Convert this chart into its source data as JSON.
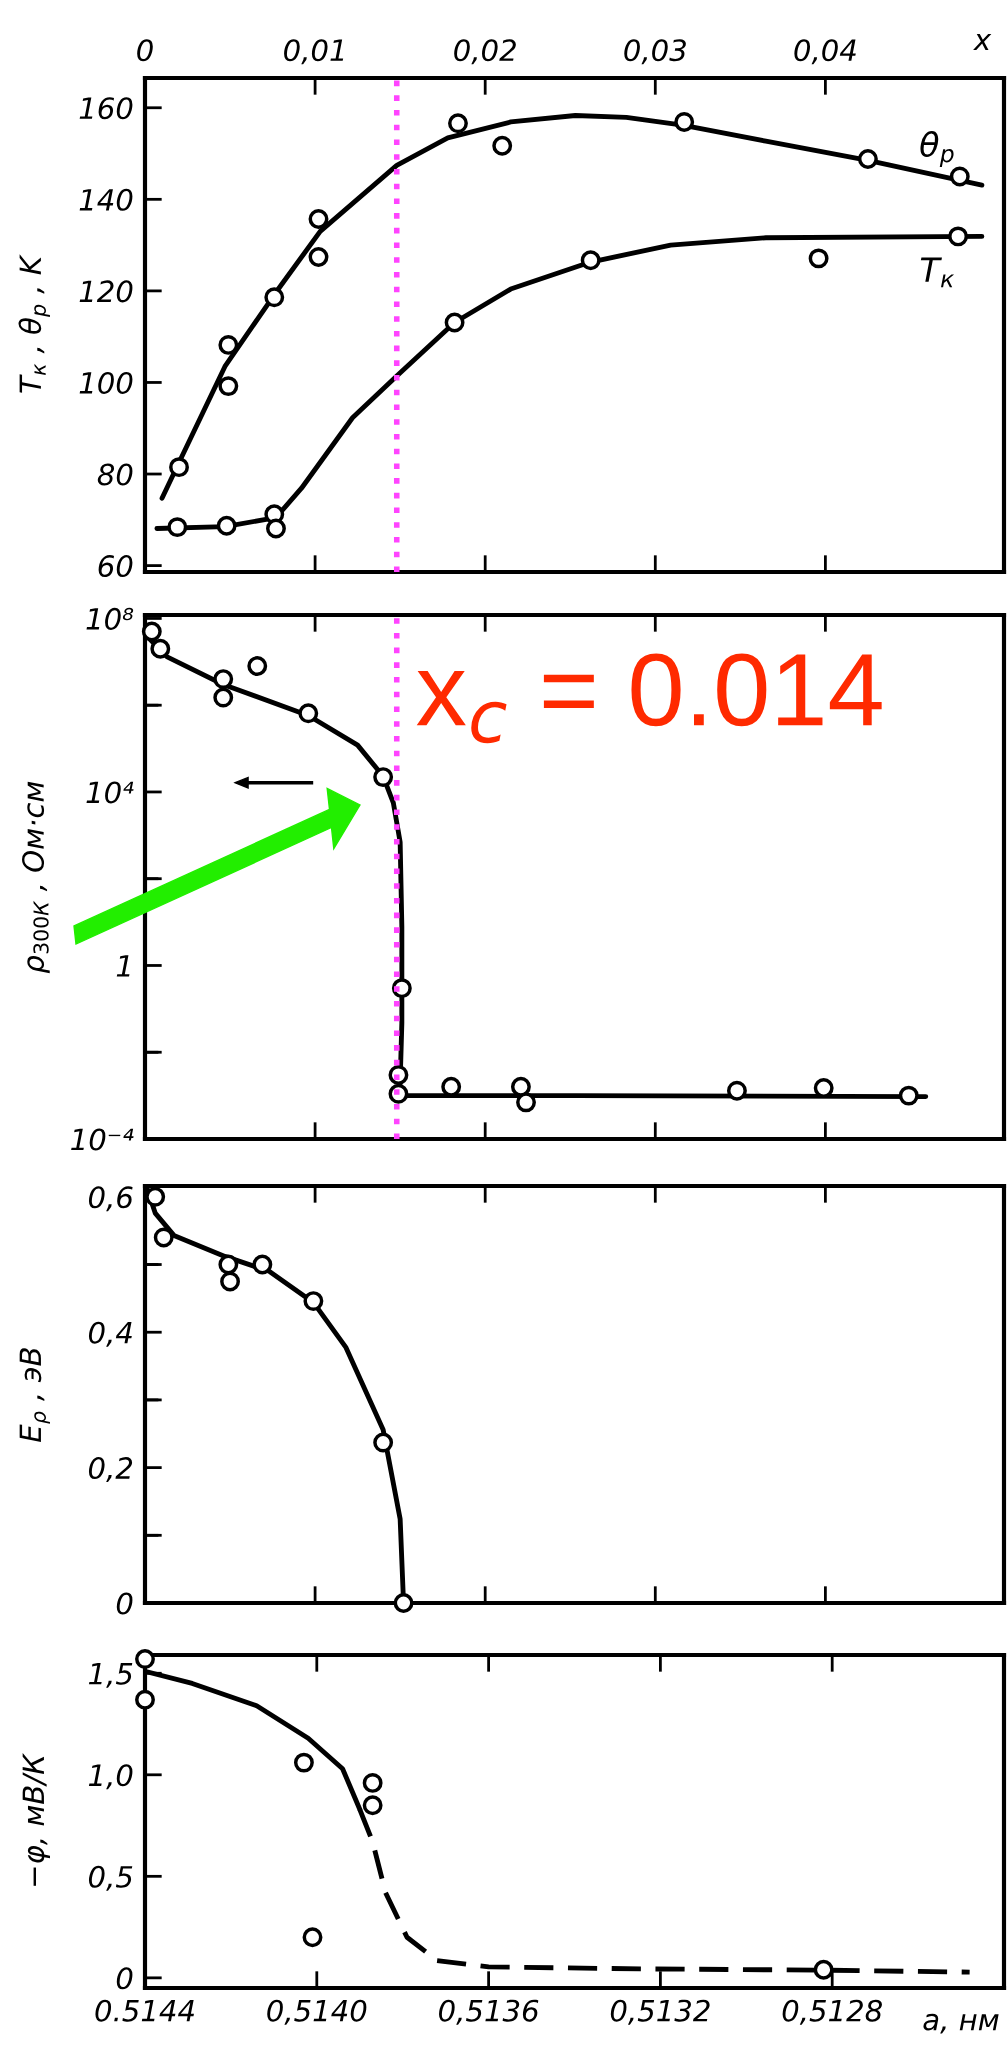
{
  "chart_data": [
    {
      "type": "line",
      "ylabel": "T$_{к}$ , θ$_{p}$ , K",
      "xlabel": "x",
      "xlim": [
        0,
        0.0505
      ],
      "xticks": [
        0,
        {
          "value": 0.01,
          "label": "0,01"
        },
        {
          "value": 0.02,
          "label": "0,02"
        },
        {
          "value": 0.03,
          "label": "0,03"
        },
        {
          "value": 0.04,
          "label": "0,04"
        }
      ],
      "ylim": [
        58.6,
        166.5
      ],
      "yticks": [
        60,
        80,
        100,
        120,
        140,
        160
      ],
      "grid": false,
      "legend": false,
      "series": [
        {
          "type": "scatter",
          "marker": "circle",
          "color": "#000000",
          "x": [
            0.002,
            0.0049,
            0.0049,
            0.0076,
            0.0102,
            0.0102,
            0.0184,
            0.021,
            0.0317,
            0.0425,
            0.0479
          ],
          "values": [
            81.5,
            108.2,
            99.2,
            118.6,
            135.7,
            127.4,
            156.6,
            151.7,
            156.9,
            148.8,
            145.0
          ]
        },
        {
          "type": "line",
          "name": "θ$_{p}$",
          "line_style": "solid",
          "color": "#000000",
          "x": [
            0.001,
            0.002,
            0.0047,
            0.0077,
            0.0103,
            0.0148,
            0.0178,
            0.0215,
            0.0253,
            0.0283,
            0.0316,
            0.0365,
            0.0425,
            0.0492
          ],
          "values": [
            74.7,
            82.5,
            103.5,
            119.7,
            133.0,
            147.4,
            153.4,
            156.9,
            158.3,
            157.9,
            156.2,
            152.7,
            148.5,
            143.1
          ]
        },
        {
          "type": "scatter",
          "marker": "circle",
          "color": "#000000",
          "x": [
            0.0019,
            0.0048,
            0.0076,
            0.0077,
            0.0182,
            0.0262,
            0.0396,
            0.0478
          ],
          "values": [
            68.4,
            68.7,
            71.2,
            68.1,
            113.1,
            126.7,
            127.1,
            131.9
          ]
        },
        {
          "type": "line",
          "name": "T$_{к}$",
          "line_style": "solid",
          "color": "#000000",
          "x": [
            0.0007,
            0.0047,
            0.0077,
            0.0092,
            0.0122,
            0.0148,
            0.0182,
            0.0215,
            0.0262,
            0.0309,
            0.0365,
            0.0492
          ],
          "values": [
            68.1,
            68.5,
            70.5,
            76.9,
            92.3,
            101.4,
            113.1,
            120.4,
            126.3,
            130.0,
            131.6,
            131.9
          ]
        }
      ],
      "ref_lines": [
        {
          "axis": "x",
          "value": 0.0148,
          "color": "#ff44ff",
          "line_style": "dotted"
        }
      ]
    },
    {
      "type": "line",
      "ylabel": "ρ$_{300К}$ , Ом·см",
      "log": "y",
      "xlim": [
        0,
        0.0505
      ],
      "xticks": [
        {
          "value": 0.01,
          "label": null
        },
        {
          "value": 0.02,
          "label": null
        },
        {
          "value": 0.03,
          "label": null
        },
        {
          "value": 0.04,
          "label": null
        }
      ],
      "ylim": [
        0.0001,
        120000000
      ],
      "yticks": [
        {
          "value": 100000000,
          "label": "10⁸"
        },
        {
          "value": 1000000,
          "label": null
        },
        {
          "value": 10000,
          "label": "10⁴"
        },
        {
          "value": 100,
          "label": null
        },
        1,
        {
          "value": 0.01,
          "label": null
        },
        {
          "value": 0.0001,
          "label": "10⁻⁴"
        }
      ],
      "tick_labels": "y",
      "grid": false,
      "legend": false,
      "series": [
        {
          "type": "scatter",
          "marker": "circle",
          "color": "#000000",
          "x": [
            0.0004,
            0.0009,
            0.0046,
            0.0046,
            0.0066,
            0.0096,
            0.014,
            0.0151,
            0.0149,
            0.0149,
            0.018,
            0.0221,
            0.0224,
            0.0348,
            0.0399,
            0.0449
          ],
          "values": [
            50000000,
            20000000,
            4000000,
            1500000,
            8000000,
            650000,
            22000,
            0.3,
            0.003,
            0.0011,
            0.0016,
            0.0016,
            0.0007,
            0.0013,
            0.0015,
            0.001
          ]
        },
        {
          "type": "line",
          "line_style": "solid",
          "color": "#000000",
          "x": [
            0.0,
            0.0013,
            0.0046,
            0.0096,
            0.0125,
            0.014,
            0.0146,
            0.015,
            0.0151,
            0.0151,
            0.015,
            0.0149,
            0.0178,
            0.0253,
            0.0459
          ],
          "values": [
            43000000,
            13000000,
            3000000,
            580000,
            120000,
            23000,
            5600,
            700,
            8,
            0.047,
            0.0021,
            0.001,
            0.001,
            0.001,
            0.00095
          ]
        }
      ],
      "annotations": [
        "x$_{c}$ = 0.014"
      ],
      "ref_lines": [
        {
          "axis": "x",
          "value": 0.0148,
          "color": "#ff44ff",
          "line_style": "dotted"
        }
      ]
    },
    {
      "type": "line",
      "ylabel": "E$_{ρ}$ , эВ",
      "xlim": [
        0,
        0.0505
      ],
      "xticks": [
        {
          "value": 0.01,
          "label": null
        },
        {
          "value": 0.02,
          "label": null
        },
        {
          "value": 0.03,
          "label": null
        },
        {
          "value": 0.04,
          "label": null
        }
      ],
      "ylim": [
        0,
        0.616
      ],
      "yticks": [
        {
          "value": 0,
          "label": "0"
        },
        {
          "value": 0.1,
          "label": null
        },
        {
          "value": 0.2,
          "label": "0,2"
        },
        {
          "value": 0.3,
          "label": null
        },
        {
          "value": 0.4,
          "label": "0,4"
        },
        {
          "value": 0.5,
          "label": null
        },
        {
          "value": 0.6,
          "label": "0,6"
        }
      ],
      "tick_labels": "y",
      "grid": false,
      "legend": false,
      "series": [
        {
          "type": "scatter",
          "marker": "circle",
          "color": "#000000",
          "x": [
            0.0006,
            0.0011,
            0.0049,
            0.005,
            0.0069,
            0.0099,
            0.014,
            0.0152
          ],
          "values": [
            0.6,
            0.54,
            0.5,
            0.475,
            0.5,
            0.446,
            0.237,
            0
          ]
        },
        {
          "type": "line",
          "line_style": "solid",
          "color": "#000000",
          "x": [
            0.0001,
            0.0006,
            0.0017,
            0.0047,
            0.0073,
            0.0099,
            0.0118,
            0.014,
            0.015,
            0.0152
          ],
          "values": [
            0.614,
            0.576,
            0.543,
            0.512,
            0.49,
            0.444,
            0.378,
            0.256,
            0.124,
            0
          ]
        }
      ]
    },
    {
      "type": "line",
      "ylabel": "−φ, мВ/К",
      "xlabel": "a, нм",
      "xlim": [
        0.5144,
        0.5124
      ],
      "xticks": [
        {
          "value": 0.5144,
          "label": "0.5144"
        },
        {
          "value": 0.514,
          "label": "0,5140"
        },
        {
          "value": 0.5136,
          "label": "0,5136"
        },
        {
          "value": 0.5132,
          "label": "0,5132"
        },
        {
          "value": 0.5128,
          "label": "0,5128"
        }
      ],
      "ylim": [
        -0.05,
        1.59
      ],
      "yticks": [
        {
          "value": 0,
          "label": "0"
        },
        {
          "value": 0.5,
          "label": "0,5"
        },
        {
          "value": 1.0,
          "label": "1,0"
        },
        {
          "value": 1.5,
          "label": "1,5"
        }
      ],
      "grid": false,
      "legend": false,
      "series": [
        {
          "type": "scatter",
          "marker": "circle",
          "color": "#000000",
          "x": [
            0.5144,
            0.5144,
            0.51403,
            0.51401,
            0.51387,
            0.51387,
            0.51282
          ],
          "values": [
            1.57,
            1.37,
            1.06,
            0.2,
            0.96,
            0.85,
            0.04
          ]
        },
        {
          "type": "line",
          "line_style": "solid",
          "color": "#000000",
          "x": [
            0.5144,
            0.51429,
            0.51414,
            0.51402,
            0.51394,
            0.5139
          ],
          "values": [
            1.51,
            1.45,
            1.34,
            1.18,
            1.03,
            0.83
          ]
        },
        {
          "type": "line",
          "line_style": "dashed",
          "color": "#000000",
          "x": [
            0.5139,
            0.51387,
            0.51384,
            0.51379,
            0.51372,
            0.5136,
            0.51324,
            0.51282,
            0.51248
          ],
          "values": [
            0.83,
            0.67,
            0.42,
            0.2,
            0.085,
            0.054,
            0.044,
            0.038,
            0.028
          ]
        }
      ]
    }
  ]
}
